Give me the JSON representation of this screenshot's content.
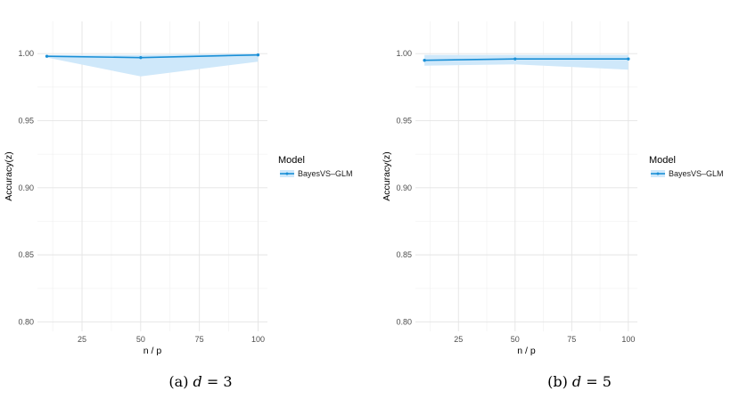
{
  "chart_data": [
    {
      "type": "line",
      "caption_label": "(a)",
      "caption_math_var": "d",
      "caption_math_eq": "= 3",
      "xlabel": "n / p",
      "ylabel": "Accuracy(z)",
      "xlim": [
        6,
        104
      ],
      "ylim": [
        0.793,
        1.024
      ],
      "x_ticks": [
        25,
        50,
        75,
        100
      ],
      "y_ticks": [
        0.8,
        0.85,
        0.9,
        0.95,
        1.0
      ],
      "y_tick_labels": [
        "0.80",
        "0.85",
        "0.90",
        "0.95",
        "1.00"
      ],
      "grid": true,
      "legend_position": "right",
      "legend_title": "Model",
      "series": [
        {
          "name": "BayesVS–GLM",
          "color": "#1a8fd6",
          "band_color": "#cfe8fa",
          "x": [
            10,
            50,
            100
          ],
          "y": [
            0.998,
            0.997,
            0.999
          ],
          "lower": [
            0.997,
            0.983,
            0.994
          ],
          "upper": [
            0.999,
            0.999,
            1.0
          ]
        }
      ]
    },
    {
      "type": "line",
      "caption_label": "(b)",
      "caption_math_var": "d",
      "caption_math_eq": "= 5",
      "xlabel": "n / p",
      "ylabel": "Accuracy(z)",
      "xlim": [
        6,
        104
      ],
      "ylim": [
        0.793,
        1.024
      ],
      "x_ticks": [
        25,
        50,
        75,
        100
      ],
      "y_ticks": [
        0.8,
        0.85,
        0.9,
        0.95,
        1.0
      ],
      "y_tick_labels": [
        "0.80",
        "0.85",
        "0.90",
        "0.95",
        "1.00"
      ],
      "grid": true,
      "legend_position": "right",
      "legend_title": "Model",
      "series": [
        {
          "name": "BayesVS–GLM",
          "color": "#1a8fd6",
          "band_color": "#cfe8fa",
          "x": [
            10,
            50,
            100
          ],
          "y": [
            0.995,
            0.996,
            0.996
          ],
          "lower": [
            0.991,
            0.992,
            0.988
          ],
          "upper": [
            0.999,
            0.999,
            0.999
          ]
        }
      ]
    }
  ]
}
